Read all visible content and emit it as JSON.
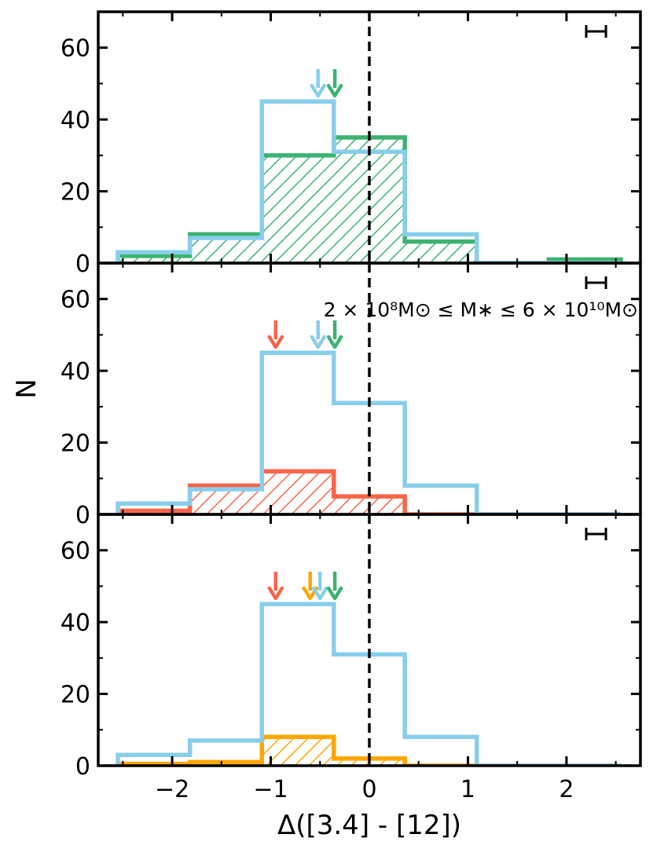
{
  "chart_data": {
    "type": "histogram",
    "xlabel": "Δ([3.4] - [12])",
    "ylabel": "N",
    "xlim": [
      -2.75,
      2.75
    ],
    "ylim": [
      0,
      70
    ],
    "bin_edges": [
      -2.55,
      -1.82,
      -1.09,
      -0.36,
      0.36,
      1.09,
      1.82,
      2.55
    ],
    "x_ticks": [
      -2,
      -1,
      0,
      1,
      2
    ],
    "x_tick_labels": [
      "−2",
      "−1",
      "0",
      "1",
      "2"
    ],
    "y_ticks": [
      0,
      20,
      40,
      60
    ],
    "y_tick_labels": [
      "0",
      "20",
      "40",
      "60"
    ],
    "reference_line_x": 0,
    "colors": {
      "blue": "#87ceeb",
      "green": "#3cb371",
      "red": "#fa6449",
      "orange": "#ffa500"
    },
    "panels": [
      {
        "series": [
          {
            "color": "green",
            "style": "hatched",
            "values": [
              2,
              8,
              30,
              35,
              6,
              0,
              1
            ]
          },
          {
            "color": "blue",
            "style": "step",
            "values": [
              3,
              7,
              45,
              31,
              8,
              0,
              0
            ]
          }
        ],
        "arrows": [
          {
            "x": -0.52,
            "color": "blue"
          },
          {
            "x": -0.35,
            "color": "green"
          }
        ],
        "error_bar": {
          "x": 2.3,
          "halfwidth": 0.1
        },
        "annotation": ""
      },
      {
        "series": [
          {
            "color": "red",
            "style": "hatched",
            "values": [
              1,
              8,
              12,
              5,
              0,
              0,
              0
            ]
          },
          {
            "color": "blue",
            "style": "step",
            "values": [
              3,
              7,
              45,
              31,
              8,
              0,
              0
            ]
          }
        ],
        "arrows": [
          {
            "x": -0.95,
            "color": "red"
          },
          {
            "x": -0.52,
            "color": "blue"
          },
          {
            "x": -0.35,
            "color": "green"
          }
        ],
        "error_bar": {
          "x": 2.3,
          "halfwidth": 0.1
        },
        "annotation": "2 × 10⁸M⊙ ≤ M∗ ≤ 6 × 10¹⁰M⊙"
      },
      {
        "series": [
          {
            "color": "orange",
            "style": "hatched",
            "values": [
              0.5,
              1,
              8,
              2,
              0,
              0,
              0
            ]
          },
          {
            "color": "blue",
            "style": "step",
            "values": [
              3,
              7,
              45,
              31,
              8,
              0,
              0
            ]
          }
        ],
        "arrows": [
          {
            "x": -0.95,
            "color": "red"
          },
          {
            "x": -0.6,
            "color": "orange"
          },
          {
            "x": -0.5,
            "color": "blue"
          },
          {
            "x": -0.35,
            "color": "green"
          }
        ],
        "error_bar": {
          "x": 2.3,
          "halfwidth": 0.1
        },
        "annotation": ""
      }
    ]
  }
}
